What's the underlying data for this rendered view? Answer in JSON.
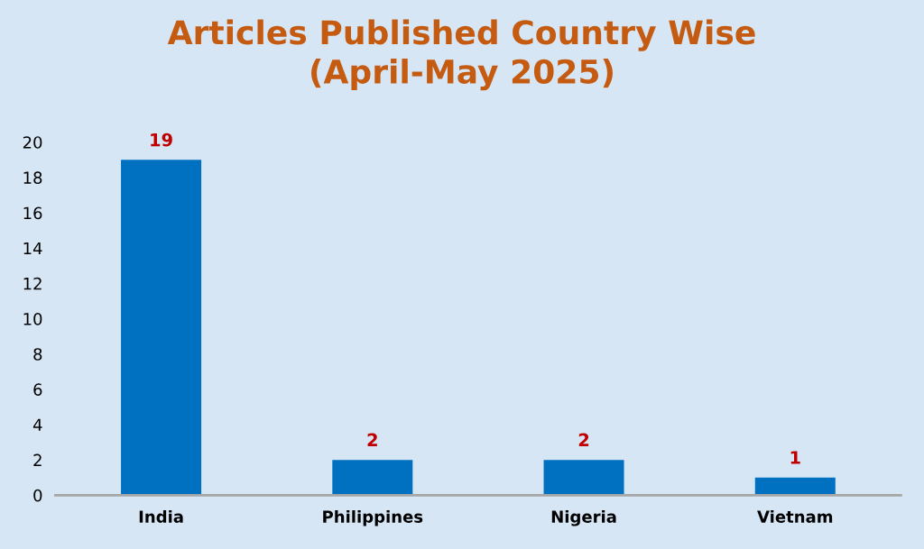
{
  "chart_data": {
    "type": "bar",
    "title": "Articles Published Country Wise\n(April-May 2025)",
    "categories": [
      "India",
      "Philippines",
      "Nigeria",
      "Vietnam"
    ],
    "values": [
      19,
      2,
      2,
      1
    ],
    "color": "#0070c0",
    "ylim": [
      0,
      20
    ],
    "yticks": [
      0,
      2,
      4,
      6,
      8,
      10,
      12,
      14,
      16,
      18,
      20
    ],
    "data_labels": true,
    "grid": false,
    "legend": false
  }
}
